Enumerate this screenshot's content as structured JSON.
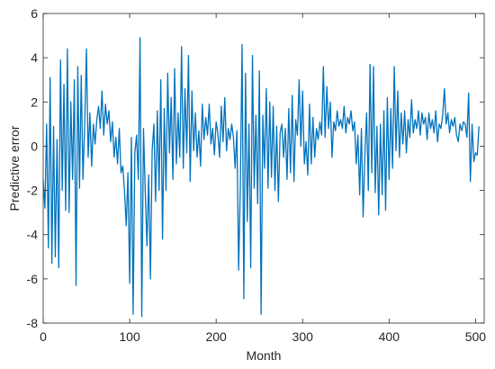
{
  "chart_data": {
    "type": "line",
    "title": "",
    "xlabel": "Month",
    "ylabel": "Predictive error",
    "xlim": [
      0,
      510
    ],
    "ylim": [
      -8,
      6
    ],
    "xticks": [
      0,
      100,
      200,
      300,
      400,
      500
    ],
    "yticks": [
      -8,
      -6,
      -4,
      -2,
      0,
      2,
      4,
      6
    ],
    "grid": false,
    "legend": "none",
    "line_color": "#0072BD",
    "series": [
      {
        "x": [
          0,
          2,
          4,
          6,
          8,
          10,
          12,
          14,
          16,
          18,
          20,
          22,
          24,
          26,
          28,
          30,
          32,
          34,
          36,
          38,
          40,
          42,
          44,
          46,
          48,
          50,
          52,
          54,
          56,
          58,
          60,
          62,
          64,
          66,
          68,
          70,
          72,
          74,
          76,
          78,
          80,
          82,
          84,
          86,
          88,
          90,
          92,
          94,
          96,
          98,
          100,
          102,
          104,
          106,
          108,
          110,
          112,
          114,
          116,
          118,
          120,
          122,
          124,
          126,
          128,
          130,
          132,
          134,
          136,
          138,
          140,
          142,
          144,
          146,
          148,
          150,
          152,
          154,
          156,
          158,
          160,
          162,
          164,
          166,
          168,
          170,
          172,
          174,
          176,
          178,
          180,
          182,
          184,
          186,
          188,
          190,
          192,
          194,
          196,
          198,
          200,
          202,
          204,
          206,
          208,
          210,
          212,
          214,
          216,
          218,
          220,
          222,
          224,
          226,
          228,
          230,
          232,
          234,
          236,
          238,
          240,
          242,
          244,
          246,
          248,
          250,
          252,
          254,
          256,
          258,
          260,
          262,
          264,
          266,
          268,
          270,
          272,
          274,
          276,
          278,
          280,
          282,
          284,
          286,
          288,
          290,
          292,
          294,
          296,
          298,
          300,
          302,
          304,
          306,
          308,
          310,
          312,
          314,
          316,
          318,
          320,
          322,
          324,
          326,
          328,
          330,
          332,
          334,
          336,
          338,
          340,
          342,
          344,
          346,
          348,
          350,
          352,
          354,
          356,
          358,
          360,
          362,
          364,
          366,
          368,
          370,
          372,
          374,
          376,
          378,
          380,
          382,
          384,
          386,
          388,
          390,
          392,
          394,
          396,
          398,
          400,
          402,
          404,
          406,
          408,
          410,
          412,
          414,
          416,
          418,
          420,
          422,
          424,
          426,
          428,
          430,
          432,
          434,
          436,
          438,
          440,
          442,
          444,
          446,
          448,
          450,
          452,
          454,
          456,
          458,
          460,
          462,
          464,
          466,
          468,
          470,
          472,
          474,
          476,
          478,
          480,
          482,
          484,
          486,
          488,
          490,
          492,
          494,
          496,
          498,
          500,
          502,
          504
        ],
        "y": [
          -1.5,
          -2.8,
          1.0,
          -4.6,
          3.1,
          -5.3,
          0.9,
          -5.0,
          0.3,
          -5.5,
          3.9,
          -2.0,
          2.8,
          -2.9,
          4.4,
          -3.0,
          2.0,
          -1.5,
          3.0,
          -6.3,
          3.6,
          -1.9,
          3.2,
          -1.5,
          1.0,
          4.4,
          -0.5,
          1.5,
          -0.9,
          1.0,
          0.1,
          1.2,
          1.8,
          0.8,
          2.5,
          0.5,
          1.9,
          1.0,
          1.6,
          0.2,
          1.1,
          -0.5,
          0.4,
          -0.8,
          0.8,
          -1.2,
          -0.9,
          -2.0,
          -3.6,
          -1.2,
          -6.2,
          0.4,
          -7.6,
          -0.3,
          0.5,
          -1.5,
          4.9,
          -7.7,
          0.8,
          -2.0,
          -4.5,
          -1.3,
          -6.0,
          -0.2,
          1.0,
          -2.5,
          1.6,
          -2.0,
          3.0,
          -4.2,
          1.7,
          -2.0,
          3.3,
          -0.3,
          2.2,
          -1.5,
          3.5,
          -0.8,
          1.5,
          -0.5,
          4.5,
          -1.0,
          2.6,
          -0.3,
          4.1,
          -1.6,
          2.5,
          -0.2,
          1.5,
          -0.5,
          0.7,
          -0.9,
          1.9,
          0.3,
          1.3,
          0.5,
          1.9,
          0.1,
          0.8,
          -0.4,
          1.1,
          0.6,
          -0.5,
          1.8,
          0.2,
          2.2,
          -0.2,
          0.8,
          0.3,
          1.0,
          0.4,
          -1.0,
          0.7,
          -5.6,
          -1.8,
          4.6,
          -6.9,
          3.3,
          -3.4,
          1.0,
          -5.5,
          4.1,
          -1.9,
          1.4,
          -2.6,
          3.4,
          -7.6,
          1.4,
          -1.0,
          2.6,
          -1.9,
          2.0,
          -1.4,
          1.8,
          -2.0,
          0.9,
          -2.5,
          0.6,
          1.0,
          -0.5,
          0.8,
          -1.5,
          1.7,
          -1.2,
          2.3,
          -1.6,
          1.2,
          0.5,
          3.0,
          0.0,
          2.5,
          -0.8,
          0.2,
          -1.3,
          1.9,
          -0.8,
          1.3,
          -0.5,
          0.8,
          0.3,
          1.1,
          0.5,
          3.6,
          0.4,
          2.7,
          0.8,
          2.0,
          -0.5,
          1.1,
          0.7,
          1.6,
          0.9,
          1.2,
          0.8,
          1.8,
          0.6,
          1.3,
          1.0,
          1.6,
          0.7,
          1.1,
          -0.8,
          0.5,
          -2.2,
          0.8,
          -3.2,
          -0.4,
          1.5,
          -2.0,
          3.7,
          -1.2,
          3.6,
          -2.1,
          0.9,
          -3.1,
          1.0,
          -2.2,
          1.6,
          -2.9,
          2.2,
          -1.5,
          1.7,
          -1.0,
          3.6,
          -0.2,
          2.5,
          -0.5,
          1.5,
          0.1,
          1.6,
          -0.3,
          1.2,
          0.4,
          2.1,
          0.6,
          1.2,
          0.8,
          1.6,
          0.5,
          1.5,
          1.0,
          1.3,
          0.3,
          1.5,
          0.8,
          1.2,
          0.6,
          1.6,
          0.2,
          1.0,
          0.8,
          1.4,
          2.6,
          1.0,
          1.5,
          0.6,
          1.2,
          0.9,
          1.3,
          0.5,
          0.2,
          1.0,
          0.7,
          1.1,
          1.0,
          0.4,
          2.4,
          -1.6,
          1.0,
          -0.7,
          -0.3,
          -0.4,
          0.9
        ]
      }
    ]
  }
}
